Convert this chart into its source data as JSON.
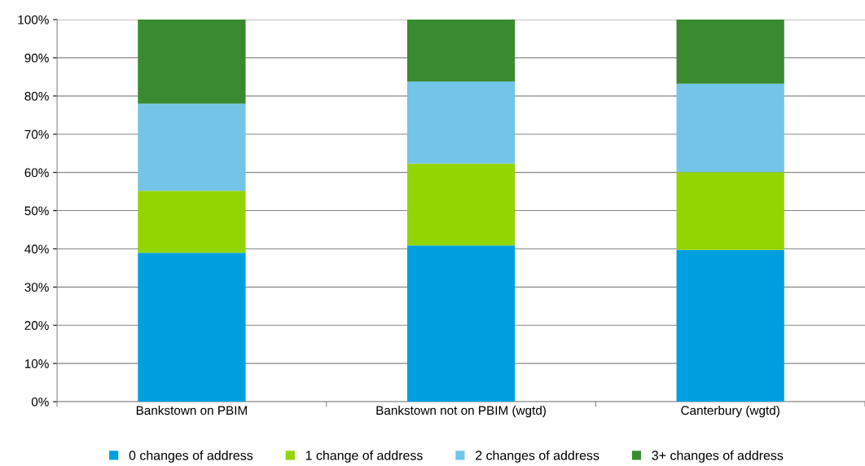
{
  "chart_data": {
    "type": "bar",
    "stacked": true,
    "categories": [
      "Bankstown on PBIM",
      "Bankstown not on PBIM (wgtd)",
      "Canterbury (wgtd)"
    ],
    "series": [
      {
        "name": "0 changes of address",
        "color": "#009fe0",
        "values": [
          39.0,
          40.9,
          39.7
        ]
      },
      {
        "name": "1 change of address",
        "color": "#92d500",
        "values": [
          16.2,
          21.4,
          20.4
        ]
      },
      {
        "name": "2 changes of address",
        "color": "#72c5e6",
        "values": [
          22.8,
          21.5,
          23.1
        ]
      },
      {
        "name": "3+ changes of address",
        "color": "#3a8b30",
        "values": [
          22.0,
          16.2,
          16.8
        ]
      }
    ],
    "ylim": [
      0,
      100
    ],
    "yticks": [
      {
        "value": 0,
        "label": "0%"
      },
      {
        "value": 10,
        "label": "10%"
      },
      {
        "value": 20,
        "label": "20%"
      },
      {
        "value": 30,
        "label": "30%"
      },
      {
        "value": 40,
        "label": "40%"
      },
      {
        "value": 50,
        "label": "50%"
      },
      {
        "value": 60,
        "label": "60%"
      },
      {
        "value": 70,
        "label": "70%"
      },
      {
        "value": 80,
        "label": "80%"
      },
      {
        "value": 90,
        "label": "90%"
      },
      {
        "value": 100,
        "label": "100%"
      }
    ],
    "grid": "y",
    "legend": "bottom"
  }
}
